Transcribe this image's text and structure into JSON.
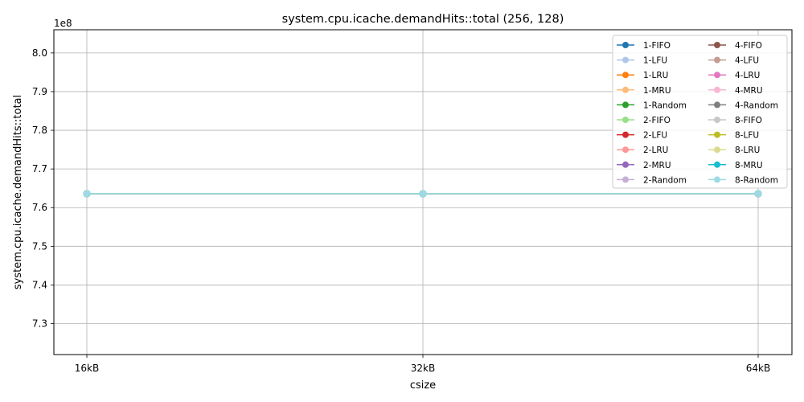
{
  "chart_data": {
    "type": "line",
    "title": "system.cpu.icache.demandHits::total (256, 128)",
    "xlabel": "csize",
    "ylabel": "system.cpu.icache.demandHits::total",
    "y_offset_label": "1e8",
    "y_scale": 100000000,
    "categories": [
      "16kB",
      "32kB",
      "64kB"
    ],
    "ylim": [
      7.22,
      8.06
    ],
    "yticks": [
      7.3,
      7.4,
      7.5,
      7.6,
      7.7,
      7.8,
      7.9,
      8.0
    ],
    "grid": true,
    "legend_placement": "top-right",
    "legend_columns": 2,
    "series": [
      {
        "name": "1-FIFO",
        "color": "#1f77b4",
        "values": [
          7.636,
          7.636,
          7.636
        ]
      },
      {
        "name": "1-LFU",
        "color": "#aec7e8",
        "values": [
          7.636,
          7.636,
          7.636
        ]
      },
      {
        "name": "1-LRU",
        "color": "#ff7f0e",
        "values": [
          7.636,
          7.636,
          7.636
        ]
      },
      {
        "name": "1-MRU",
        "color": "#ffbb78",
        "values": [
          7.636,
          7.636,
          7.636
        ]
      },
      {
        "name": "1-Random",
        "color": "#2ca02c",
        "values": [
          7.636,
          7.636,
          7.636
        ]
      },
      {
        "name": "2-FIFO",
        "color": "#98df8a",
        "values": [
          7.636,
          7.636,
          7.636
        ]
      },
      {
        "name": "2-LFU",
        "color": "#d62728",
        "values": [
          7.636,
          7.636,
          7.636
        ]
      },
      {
        "name": "2-LRU",
        "color": "#ff9896",
        "values": [
          7.636,
          7.636,
          7.636
        ]
      },
      {
        "name": "2-MRU",
        "color": "#9467bd",
        "values": [
          7.636,
          7.636,
          7.636
        ]
      },
      {
        "name": "2-Random",
        "color": "#c5b0d5",
        "values": [
          7.636,
          7.636,
          7.636
        ]
      },
      {
        "name": "4-FIFO",
        "color": "#8c564b",
        "values": [
          7.636,
          7.636,
          7.636
        ]
      },
      {
        "name": "4-LFU",
        "color": "#c49c94",
        "values": [
          7.636,
          7.636,
          7.636
        ]
      },
      {
        "name": "4-LRU",
        "color": "#e377c2",
        "values": [
          7.636,
          7.636,
          7.636
        ]
      },
      {
        "name": "4-MRU",
        "color": "#f7b6d2",
        "values": [
          7.636,
          7.636,
          7.636
        ]
      },
      {
        "name": "4-Random",
        "color": "#7f7f7f",
        "values": [
          7.636,
          7.636,
          7.636
        ]
      },
      {
        "name": "8-FIFO",
        "color": "#c7c7c7",
        "values": [
          7.636,
          7.636,
          7.636
        ]
      },
      {
        "name": "8-LFU",
        "color": "#bcbd22",
        "values": [
          7.636,
          7.636,
          7.636
        ]
      },
      {
        "name": "8-LRU",
        "color": "#dbdb8d",
        "values": [
          7.636,
          7.636,
          7.636
        ]
      },
      {
        "name": "8-MRU",
        "color": "#17becf",
        "values": [
          7.636,
          7.636,
          7.636
        ]
      },
      {
        "name": "8-Random",
        "color": "#9edae5",
        "values": [
          7.636,
          7.636,
          7.636
        ]
      }
    ]
  }
}
